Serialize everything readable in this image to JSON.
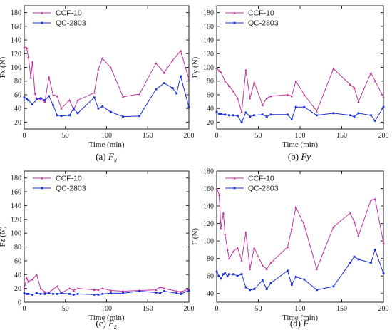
{
  "chart_data": [
    {
      "type": "line",
      "caption_prefix": "(a)",
      "caption_math": "F",
      "caption_sub": "x",
      "xlabel": "Time (min)",
      "ylabel": "Fx (N)",
      "xlim": [
        0,
        200
      ],
      "ylim": [
        10,
        190
      ],
      "xticks": [
        0,
        50,
        100,
        150,
        200
      ],
      "yticks": [
        20,
        40,
        60,
        80,
        100,
        120,
        140,
        160,
        180
      ],
      "legend": "top-center",
      "series": [
        {
          "name": "CCF-10",
          "color": "#c0369e",
          "x": [
            0,
            3,
            5,
            8,
            10,
            13,
            15,
            20,
            25,
            30,
            35,
            40,
            45,
            55,
            60,
            65,
            85,
            90,
            95,
            105,
            120,
            140,
            160,
            170,
            180,
            190,
            200
          ],
          "y": [
            130,
            128,
            115,
            85,
            108,
            62,
            55,
            53,
            50,
            86,
            60,
            58,
            40,
            52,
            38,
            52,
            63,
            97,
            113,
            100,
            57,
            61,
            106,
            92,
            110,
            124,
            83
          ]
        },
        {
          "name": "QC-2803",
          "color": "#1c2fd6",
          "x": [
            0,
            3,
            5,
            10,
            15,
            20,
            25,
            30,
            35,
            40,
            45,
            55,
            60,
            65,
            85,
            90,
            95,
            105,
            120,
            140,
            160,
            170,
            180,
            185,
            190,
            200
          ],
          "y": [
            56,
            54,
            52,
            46,
            53,
            55,
            52,
            58,
            45,
            30,
            29,
            30,
            40,
            33,
            56,
            40,
            43,
            35,
            28,
            29,
            68,
            77,
            70,
            62,
            87,
            42
          ]
        }
      ]
    },
    {
      "type": "line",
      "caption_prefix": "(b)",
      "caption_math": "Fy",
      "caption_sub": "",
      "xlabel": "Time (min)",
      "ylabel": "Fy (N)",
      "xlim": [
        0,
        200
      ],
      "ylim": [
        10,
        190
      ],
      "xticks": [
        0,
        50,
        100,
        150,
        200
      ],
      "yticks": [
        20,
        40,
        60,
        80,
        100,
        120,
        140,
        160,
        180
      ],
      "legend": "top-center",
      "series": [
        {
          "name": "CCF-10",
          "color": "#c0369e",
          "x": [
            0,
            3,
            5,
            10,
            15,
            20,
            25,
            30,
            35,
            40,
            45,
            55,
            60,
            65,
            85,
            90,
            95,
            105,
            120,
            140,
            160,
            165,
            170,
            185,
            190,
            200
          ],
          "y": [
            99,
            95,
            93,
            80,
            73,
            65,
            55,
            35,
            96,
            55,
            78,
            45,
            55,
            58,
            60,
            58,
            80,
            60,
            36,
            98,
            75,
            70,
            50,
            92,
            80,
            57
          ]
        },
        {
          "name": "QC-2803",
          "color": "#1c2fd6",
          "x": [
            0,
            3,
            5,
            10,
            15,
            20,
            25,
            30,
            35,
            40,
            45,
            55,
            60,
            65,
            85,
            90,
            95,
            105,
            120,
            140,
            160,
            165,
            170,
            185,
            190,
            200
          ],
          "y": [
            35,
            32,
            32,
            31,
            30,
            30,
            29,
            20,
            34,
            28,
            30,
            31,
            28,
            31,
            31,
            24,
            42,
            42,
            30,
            33,
            30,
            28,
            33,
            30,
            22,
            42
          ]
        }
      ]
    },
    {
      "type": "line",
      "caption_prefix": "(c)",
      "caption_math": "F",
      "caption_sub": "z",
      "xlabel": "Time (min)",
      "ylabel": "Fz (N)",
      "xlim": [
        0,
        200
      ],
      "ylim": [
        0,
        190
      ],
      "xticks": [
        0,
        50,
        100,
        150,
        200
      ],
      "yticks": [
        0,
        20,
        40,
        60,
        80,
        100,
        120,
        140,
        160,
        180
      ],
      "legend": "top-center",
      "series": [
        {
          "name": "CCF-10",
          "color": "#c0369e",
          "x": [
            0,
            3,
            5,
            10,
            15,
            20,
            25,
            30,
            35,
            40,
            45,
            55,
            60,
            65,
            85,
            90,
            95,
            105,
            120,
            140,
            160,
            165,
            170,
            185,
            190,
            200
          ],
          "y": [
            20,
            35,
            30,
            33,
            40,
            20,
            15,
            14,
            19,
            23,
            13,
            20,
            17,
            20,
            18,
            18,
            20,
            17,
            16,
            17,
            18,
            22,
            20,
            16,
            15,
            19
          ]
        },
        {
          "name": "QC-2803",
          "color": "#1c2fd6",
          "x": [
            0,
            3,
            5,
            10,
            15,
            20,
            25,
            30,
            35,
            40,
            45,
            55,
            60,
            65,
            85,
            90,
            95,
            105,
            120,
            140,
            160,
            165,
            170,
            185,
            190,
            200
          ],
          "y": [
            13,
            12,
            12,
            11,
            13,
            12,
            12,
            13,
            12,
            12,
            13,
            12,
            11,
            12,
            11,
            11,
            12,
            13,
            13,
            16,
            14,
            13,
            16,
            13,
            12,
            17
          ]
        }
      ]
    },
    {
      "type": "line",
      "caption_prefix": "(d)",
      "caption_math": "F",
      "caption_sub": "",
      "xlabel": "Time (min)",
      "ylabel": "F (N)",
      "xlim": [
        0,
        200
      ],
      "ylim": [
        30,
        180
      ],
      "xticks": [
        0,
        50,
        100,
        150,
        200
      ],
      "yticks": [
        40,
        60,
        80,
        100,
        120,
        140,
        160,
        180
      ],
      "legend": "top-center",
      "series": [
        {
          "name": "CCF-10",
          "color": "#c0369e",
          "x": [
            0,
            3,
            5,
            8,
            10,
            13,
            15,
            20,
            25,
            30,
            35,
            40,
            45,
            55,
            60,
            65,
            85,
            90,
            95,
            105,
            120,
            140,
            160,
            165,
            170,
            185,
            190,
            200
          ],
          "y": [
            160,
            153,
            115,
            132,
            108,
            90,
            80,
            88,
            92,
            78,
            110,
            68,
            92,
            72,
            68,
            75,
            93,
            114,
            139,
            118,
            68,
            116,
            132,
            122,
            106,
            147,
            148,
            98
          ]
        },
        {
          "name": "QC-2803",
          "color": "#1c2fd6",
          "x": [
            0,
            3,
            5,
            8,
            10,
            13,
            15,
            20,
            25,
            30,
            35,
            40,
            45,
            55,
            60,
            65,
            85,
            90,
            95,
            105,
            120,
            140,
            160,
            165,
            170,
            185,
            190,
            200
          ],
          "y": [
            65,
            60,
            57,
            62,
            63,
            60,
            62,
            62,
            60,
            62,
            47,
            44,
            45,
            55,
            45,
            52,
            66,
            50,
            59,
            56,
            44,
            48,
            75,
            82,
            79,
            75,
            90,
            63
          ]
        }
      ]
    }
  ]
}
